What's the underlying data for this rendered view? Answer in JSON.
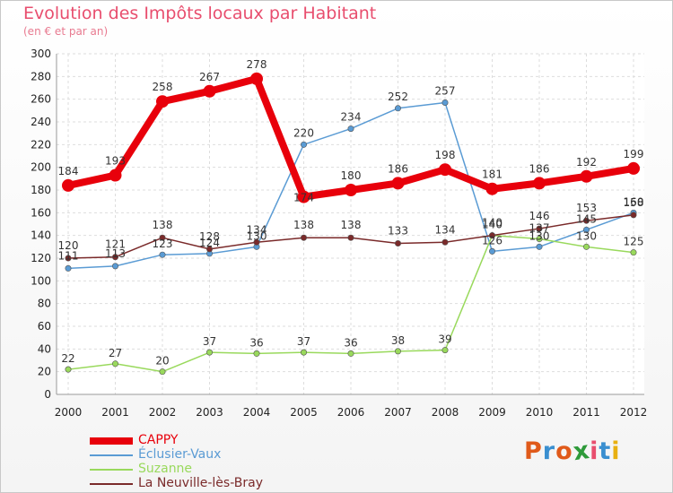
{
  "header": {
    "title": "Evolution des Impôts locaux par Habitant",
    "subtitle": "(en € et par an)"
  },
  "logo": {
    "text": "Proxiti",
    "colors": [
      "#e05a1a",
      "#3a8fd0",
      "#e05a1a",
      "#2e9a3a",
      "#e84e6e",
      "#3a8fd0",
      "#e8b010"
    ]
  },
  "colors": {
    "title": "#e84e6e",
    "axis": "#999999",
    "grid": "#dddddd",
    "background": "#ffffff"
  },
  "chart_data": {
    "type": "line",
    "title": "Evolution des Impôts locaux par Habitant",
    "subtitle": "(en € et par an)",
    "xlabel": "",
    "ylabel": "",
    "x": [
      "2000",
      "2001",
      "2002",
      "2003",
      "2004",
      "2005",
      "2006",
      "2007",
      "2008",
      "2009",
      "2010",
      "2011",
      "2012"
    ],
    "ylim": [
      0,
      300
    ],
    "yticks": [
      0,
      20,
      40,
      60,
      80,
      100,
      120,
      140,
      160,
      180,
      200,
      220,
      240,
      260,
      280,
      300
    ],
    "grid": true,
    "legend": "bottom-left",
    "series": [
      {
        "name": "CAPPY",
        "color": "#e8000b",
        "values": [
          184,
          193,
          258,
          267,
          278,
          174,
          180,
          186,
          198,
          181,
          186,
          192,
          199
        ],
        "labels": [
          "184",
          "193",
          "258",
          "267",
          "278",
          "174",
          "180",
          "186",
          "198",
          "181",
          "186",
          "192",
          "199"
        ]
      },
      {
        "name": "Éclusier-Vaux",
        "color": "#5a9bd4",
        "values": [
          111,
          113,
          123,
          124,
          130,
          220,
          234,
          252,
          257,
          126,
          130,
          145,
          160
        ],
        "labels": [
          "111",
          "113",
          "123",
          "124",
          "130",
          "220",
          "234",
          "252",
          "257",
          "126",
          "130",
          "145",
          "160"
        ]
      },
      {
        "name": "Suzanne",
        "color": "#99d95c",
        "values": [
          22,
          27,
          20,
          37,
          36,
          37,
          36,
          38,
          39,
          140,
          137,
          130,
          125
        ],
        "labels": [
          "22",
          "27",
          "20",
          "37",
          "36",
          "37",
          "36",
          "38",
          "39",
          "140",
          "137",
          "130",
          "125"
        ]
      },
      {
        "name": "La Neuville-lès-Bray",
        "color": "#7a2a2a",
        "values": [
          120,
          121,
          138,
          128,
          134,
          138,
          138,
          133,
          134,
          140,
          146,
          153,
          158
        ],
        "labels": [
          "120",
          "121",
          "138",
          "128",
          "134",
          "138",
          "138",
          "133",
          "134",
          "140",
          "146",
          "153",
          "158"
        ]
      }
    ]
  }
}
